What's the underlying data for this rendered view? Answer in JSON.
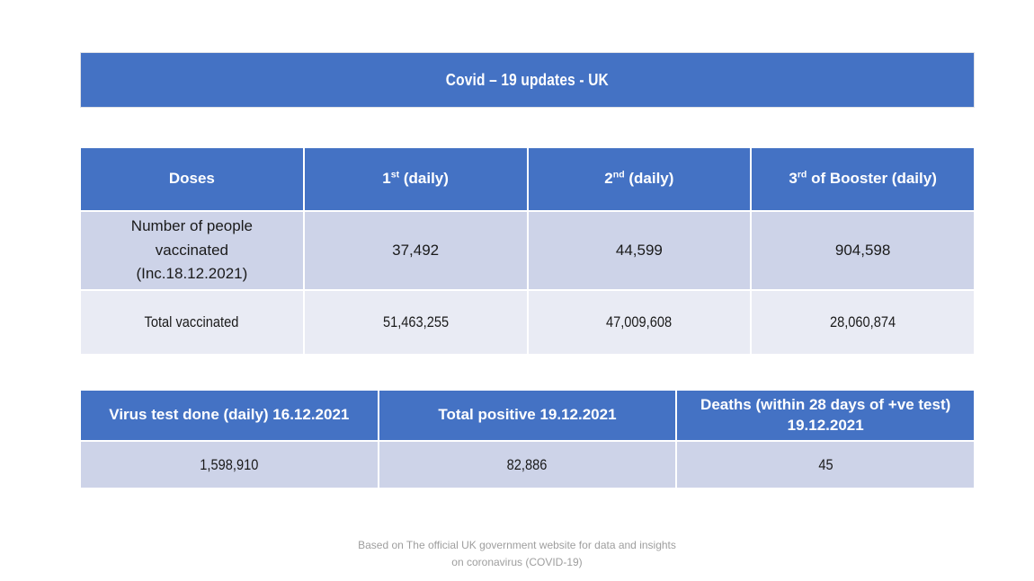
{
  "title": "Covid – 19 updates - UK",
  "colors": {
    "header_blue": "#4472C4",
    "band_dark": "#CDD3E8",
    "band_light": "#E9EBF4",
    "text_dark": "#1a1a1a",
    "footer_gray": "#9e9e9e"
  },
  "vaccination_table": {
    "headers": [
      {
        "pre": "Doses",
        "sup": "",
        "post": ""
      },
      {
        "pre": "1",
        "sup": "st",
        "post": " (daily)"
      },
      {
        "pre": "2",
        "sup": "nd",
        "post": " (daily)"
      },
      {
        "pre": "3",
        "sup": "rd",
        "post": " of Booster (daily)"
      }
    ],
    "rows": [
      {
        "label": "Number of people vaccinated (Inc.18.12.2021)",
        "values": [
          "37,492",
          "44,599",
          "904,598"
        ]
      },
      {
        "label": "Total vaccinated",
        "values": [
          "51,463,255",
          "47,009,608",
          "28,060,874"
        ]
      }
    ]
  },
  "stats_table": {
    "headers": [
      "Virus test done (daily) 16.12.2021",
      "Total positive 19.12.2021",
      "Deaths (within 28 days of +ve test) 19.12.2021"
    ],
    "values": [
      "1,598,910",
      "82,886",
      "45"
    ]
  },
  "footer": "Based on The official UK government website for data and insights on coronavirus (COVID-19)"
}
